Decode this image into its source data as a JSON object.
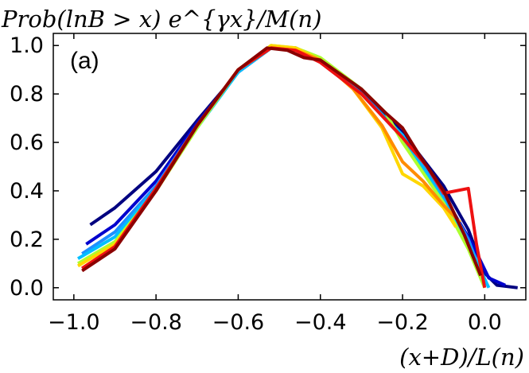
{
  "chart_data": {
    "type": "line",
    "title": "",
    "xlabel": "(x+D)/L(n)",
    "ylabel": "Prob(lnB > x) e^{γx}/M(n)",
    "panel_label": "(a)",
    "xlim": [
      -1.05,
      0.1
    ],
    "ylim": [
      -0.05,
      1.05
    ],
    "x_ticks": [
      -1.0,
      -0.8,
      -0.6,
      -0.4,
      -0.2,
      0.0
    ],
    "x_tick_labels": [
      "−1.0",
      "−0.8",
      "−0.6",
      "−0.4",
      "−0.2",
      "0.0"
    ],
    "y_ticks": [
      0.0,
      0.2,
      0.4,
      0.6,
      0.8,
      1.0
    ],
    "y_tick_labels": [
      "0.0",
      "0.2",
      "0.4",
      "0.6",
      "0.8",
      "1.0"
    ],
    "grid": false,
    "series": [
      {
        "color": "#000080",
        "points": [
          [
            -0.96,
            0.26
          ],
          [
            -0.9,
            0.33
          ],
          [
            -0.8,
            0.48
          ],
          [
            -0.7,
            0.69
          ],
          [
            -0.6,
            0.89
          ],
          [
            -0.52,
            0.99
          ],
          [
            -0.46,
            0.99
          ],
          [
            -0.4,
            0.94
          ],
          [
            -0.3,
            0.82
          ],
          [
            -0.2,
            0.64
          ],
          [
            -0.1,
            0.42
          ],
          [
            -0.04,
            0.24
          ],
          [
            0.0,
            0.06
          ],
          [
            0.03,
            0.01
          ],
          [
            0.08,
            0.0
          ]
        ]
      },
      {
        "color": "#0000cd",
        "points": [
          [
            -0.97,
            0.18
          ],
          [
            -0.9,
            0.26
          ],
          [
            -0.8,
            0.44
          ],
          [
            -0.7,
            0.68
          ],
          [
            -0.6,
            0.89
          ],
          [
            -0.52,
            0.99
          ],
          [
            -0.46,
            0.99
          ],
          [
            -0.4,
            0.94
          ],
          [
            -0.3,
            0.81
          ],
          [
            -0.2,
            0.62
          ],
          [
            -0.1,
            0.38
          ],
          [
            -0.03,
            0.18
          ],
          [
            0.01,
            0.04
          ],
          [
            0.05,
            0.01
          ]
        ]
      },
      {
        "color": "#1e90ff",
        "points": [
          [
            -0.98,
            0.14
          ],
          [
            -0.9,
            0.23
          ],
          [
            -0.8,
            0.42
          ],
          [
            -0.7,
            0.67
          ],
          [
            -0.6,
            0.89
          ],
          [
            -0.52,
            0.99
          ],
          [
            -0.46,
            0.99
          ],
          [
            -0.4,
            0.94
          ],
          [
            -0.3,
            0.8
          ],
          [
            -0.2,
            0.62
          ],
          [
            -0.1,
            0.38
          ],
          [
            -0.04,
            0.2
          ],
          [
            0.0,
            0.02
          ]
        ]
      },
      {
        "color": "#00bfff",
        "points": [
          [
            -0.99,
            0.12
          ],
          [
            -0.9,
            0.21
          ],
          [
            -0.8,
            0.41
          ],
          [
            -0.7,
            0.66
          ],
          [
            -0.6,
            0.89
          ],
          [
            -0.52,
            0.99
          ],
          [
            -0.46,
            0.99
          ],
          [
            -0.4,
            0.94
          ],
          [
            -0.3,
            0.8
          ],
          [
            -0.2,
            0.63
          ],
          [
            -0.1,
            0.36
          ],
          [
            -0.04,
            0.18
          ],
          [
            0.01,
            0.0
          ]
        ]
      },
      {
        "color": "#adff2f",
        "points": [
          [
            -0.99,
            0.1
          ],
          [
            -0.9,
            0.19
          ],
          [
            -0.8,
            0.4
          ],
          [
            -0.7,
            0.66
          ],
          [
            -0.6,
            0.9
          ],
          [
            -0.52,
            1.0
          ],
          [
            -0.46,
            0.99
          ],
          [
            -0.4,
            0.95
          ],
          [
            -0.3,
            0.82
          ],
          [
            -0.24,
            0.72
          ],
          [
            -0.2,
            0.6
          ],
          [
            -0.1,
            0.35
          ],
          [
            -0.04,
            0.16
          ],
          [
            0.0,
            0.0
          ]
        ]
      },
      {
        "color": "#ffd700",
        "points": [
          [
            -0.99,
            0.09
          ],
          [
            -0.9,
            0.18
          ],
          [
            -0.8,
            0.4
          ],
          [
            -0.7,
            0.67
          ],
          [
            -0.6,
            0.9
          ],
          [
            -0.52,
            1.0
          ],
          [
            -0.46,
            0.99
          ],
          [
            -0.4,
            0.94
          ],
          [
            -0.32,
            0.82
          ],
          [
            -0.25,
            0.66
          ],
          [
            -0.2,
            0.47
          ],
          [
            -0.15,
            0.42
          ],
          [
            -0.1,
            0.33
          ],
          [
            -0.07,
            0.25
          ]
        ]
      },
      {
        "color": "#ff8c00",
        "points": [
          [
            -0.98,
            0.08
          ],
          [
            -0.9,
            0.17
          ],
          [
            -0.8,
            0.4
          ],
          [
            -0.7,
            0.67
          ],
          [
            -0.6,
            0.9
          ],
          [
            -0.52,
            0.99
          ],
          [
            -0.46,
            0.98
          ],
          [
            -0.4,
            0.94
          ],
          [
            -0.32,
            0.82
          ],
          [
            -0.25,
            0.67
          ],
          [
            -0.2,
            0.52
          ],
          [
            -0.15,
            0.44
          ],
          [
            -0.1,
            0.34
          ],
          [
            -0.06,
            0.27
          ]
        ]
      },
      {
        "color": "#ee1111",
        "points": [
          [
            -0.98,
            0.08
          ],
          [
            -0.9,
            0.17
          ],
          [
            -0.8,
            0.41
          ],
          [
            -0.7,
            0.67
          ],
          [
            -0.6,
            0.9
          ],
          [
            -0.52,
            0.99
          ],
          [
            -0.46,
            0.98
          ],
          [
            -0.4,
            0.93
          ],
          [
            -0.3,
            0.8
          ],
          [
            -0.2,
            0.62
          ],
          [
            -0.14,
            0.5
          ],
          [
            -0.1,
            0.39
          ],
          [
            -0.04,
            0.41
          ],
          [
            -0.02,
            0.18
          ],
          [
            0.0,
            0.0
          ]
        ]
      },
      {
        "color": "#8b0000",
        "points": [
          [
            -0.98,
            0.07
          ],
          [
            -0.9,
            0.16
          ],
          [
            -0.8,
            0.4
          ],
          [
            -0.7,
            0.67
          ],
          [
            -0.6,
            0.9
          ],
          [
            -0.53,
            0.99
          ],
          [
            -0.48,
            0.98
          ],
          [
            -0.44,
            0.95
          ],
          [
            -0.4,
            0.94
          ],
          [
            -0.3,
            0.82
          ],
          [
            -0.24,
            0.72
          ],
          [
            -0.2,
            0.66
          ],
          [
            -0.16,
            0.55
          ],
          [
            -0.1,
            0.4
          ],
          [
            -0.05,
            0.22
          ],
          [
            -0.01,
            0.05
          ]
        ]
      }
    ]
  }
}
